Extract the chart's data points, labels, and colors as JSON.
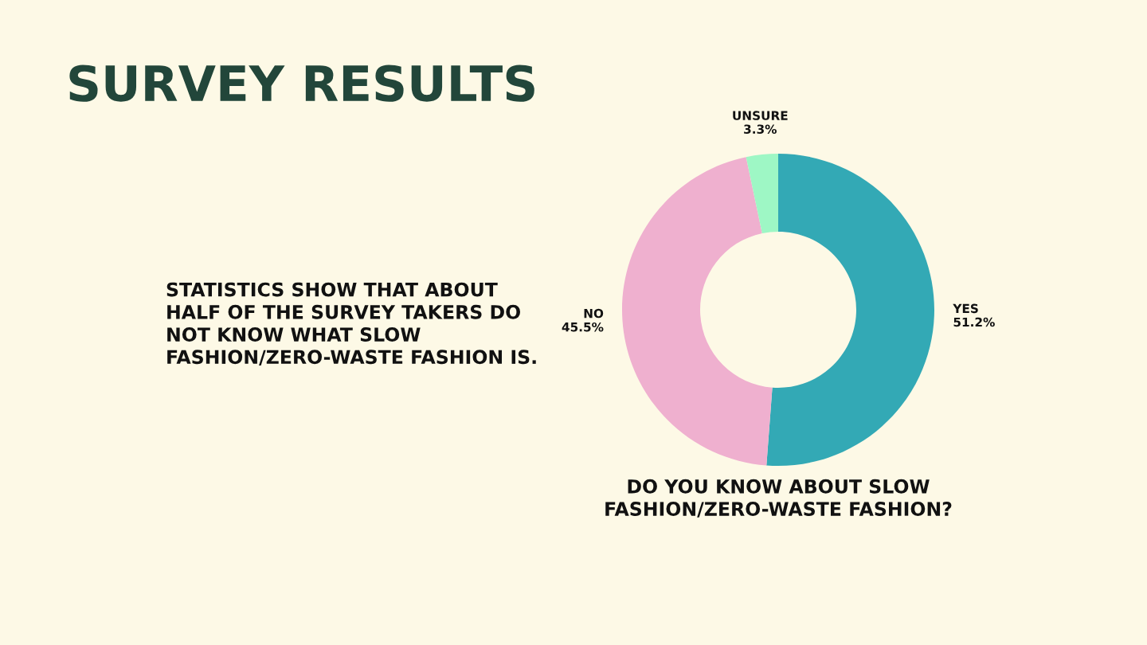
{
  "chart_data": {
    "type": "donut",
    "title": "SURVEY RESULTS",
    "categories": [
      "YES",
      "NO",
      "UNSURE"
    ],
    "values": [
      51.2,
      45.5,
      3.3
    ],
    "colors": [
      "#33a9b5",
      "#efb0cf",
      "#9ef7c5"
    ],
    "value_labels": [
      "51.2%",
      "45.5%",
      "3.3%"
    ],
    "annotations": [
      "STATISTICS SHOW THAT ABOUT\nHALF OF THE SURVEY TAKERS DO\nNOT KNOW WHAT SLOW\nFASHION/ZERO-WASTE FASHION IS.",
      "DO YOU KNOW ABOUT SLOW\nFASHION/ZERO-WASTE FASHION?"
    ],
    "legend": false
  }
}
